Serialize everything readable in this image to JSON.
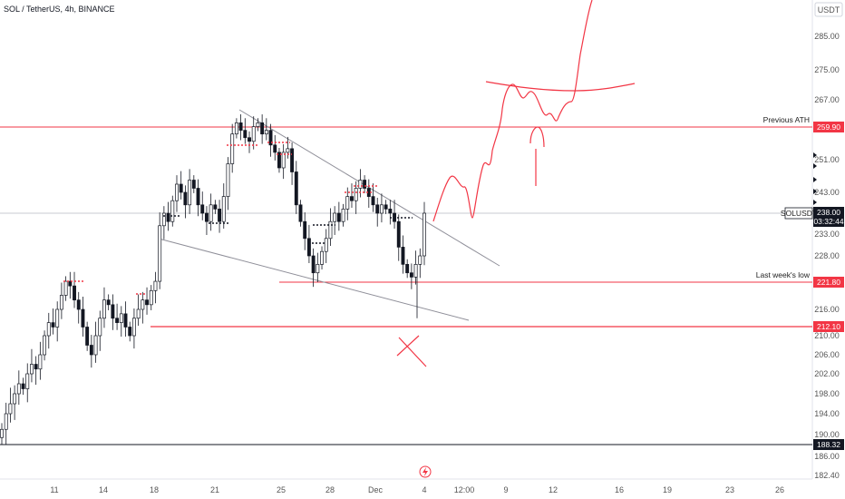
{
  "header": {
    "title": "SOL / TetherUS, 4h, BINANCE"
  },
  "chart_data": {
    "type": "candlestick",
    "title": "SOL / TetherUS, 4h, BINANCE",
    "ylim": [
      180,
      296
    ],
    "y_unit": "USDT",
    "y_ticks": [
      "285.00",
      "275.00",
      "267.00",
      "251.00",
      "243.00",
      "233.00",
      "228.00",
      "216.00",
      "210.00",
      "206.00",
      "202.00",
      "198.00",
      "194.00",
      "190.00",
      "186.00",
      "182.40"
    ],
    "x_ticks": [
      "11",
      "14",
      "18",
      "21",
      "25",
      "28",
      "Dec",
      "4",
      "12:00",
      "9",
      "12",
      "16",
      "19",
      "23",
      "26"
    ],
    "levels": [
      {
        "label": "Previous ATH",
        "value": "259.90",
        "color": "#f23645"
      },
      {
        "label": "Last week's low",
        "value": "221.80",
        "color": "#f23645"
      },
      {
        "label": "",
        "value": "212.10",
        "color": "#f23645"
      },
      {
        "label": "",
        "value": "188.32",
        "color": "#131722"
      }
    ],
    "current_price": {
      "symbol": "SOLUSDT",
      "value": "238.00",
      "countdown": "03:32:44",
      "color": "#131722"
    },
    "price_path_close": [
      191,
      194,
      196,
      198,
      200,
      199,
      202,
      204,
      203,
      206,
      210,
      213,
      212,
      216,
      219,
      222,
      221,
      218,
      216,
      212,
      208,
      206,
      210,
      214,
      218,
      217,
      214,
      213,
      215,
      212,
      210,
      214,
      216,
      218,
      217,
      220,
      222,
      235,
      238,
      236,
      241,
      245,
      243,
      240,
      246,
      244,
      240,
      238,
      236,
      240,
      239,
      236,
      242,
      250,
      258,
      261,
      259,
      257,
      256,
      260,
      261,
      258,
      259,
      255,
      253,
      249,
      253,
      254,
      248,
      240,
      236,
      232,
      228,
      224,
      226,
      229,
      232,
      236,
      238,
      236,
      239,
      242,
      241,
      244,
      246,
      244,
      242,
      240,
      238,
      240,
      239,
      238,
      236,
      230,
      226,
      224,
      223,
      226,
      228,
      238
    ]
  }
}
